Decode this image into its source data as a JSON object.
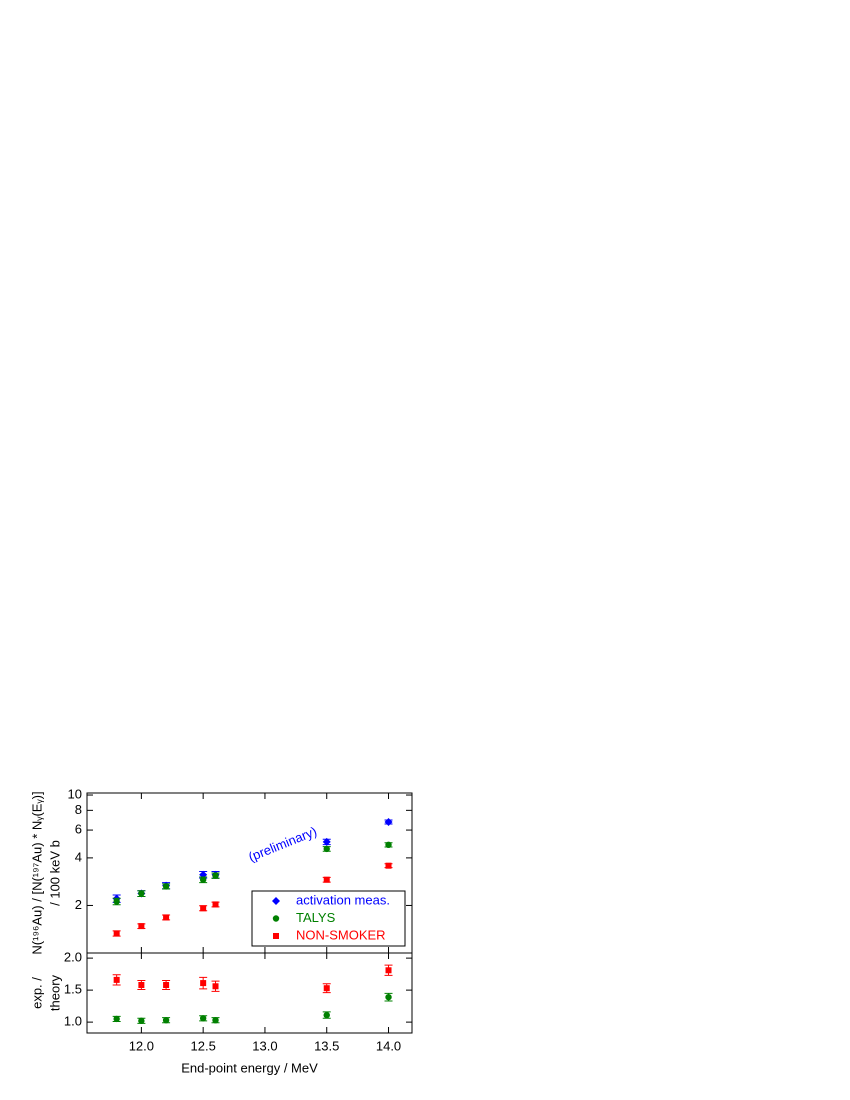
{
  "chart_data": [
    {
      "type": "scatter",
      "ylog": true,
      "y_label": [
        "N(¹⁹⁶Au) / [N(¹⁹⁷Au) * Nᵧ(Eᵧ)]",
        "/ 100 keV b"
      ],
      "annotation": "(preliminary)",
      "annotation_color": "#0000ff",
      "legend": "lower right",
      "x": [
        11.8,
        12.0,
        12.2,
        12.5,
        12.6,
        13.5,
        14.0
      ],
      "xlim": [
        11.56,
        14.19
      ],
      "ylim": [
        1.0,
        10.3
      ],
      "yticks": [
        2,
        4,
        6,
        8,
        10
      ],
      "series": [
        {
          "name": "activation meas.",
          "color": "#0000ff",
          "marker": "diamond",
          "values": [
            2.21,
            2.38,
            2.67,
            3.13,
            3.13,
            5.05,
            6.75
          ],
          "errors": [
            0.12,
            0.1,
            0.12,
            0.15,
            0.15,
            0.2,
            0.2
          ]
        },
        {
          "name": "TALYS",
          "color": "#008000",
          "marker": "circle",
          "values": [
            2.12,
            2.38,
            2.64,
            2.91,
            3.09,
            4.56,
            4.84
          ],
          "errors": [
            0.1,
            0.1,
            0.1,
            0.12,
            0.12,
            0.15,
            0.15
          ]
        },
        {
          "name": "NON-SMOKER",
          "color": "#ff0000",
          "marker": "square",
          "values": [
            1.33,
            1.48,
            1.68,
            1.92,
            2.03,
            2.91,
            3.57
          ],
          "errors": [
            0.05,
            0.05,
            0.06,
            0.07,
            0.07,
            0.1,
            0.1
          ]
        }
      ]
    },
    {
      "type": "scatter",
      "ylog": false,
      "y_label": [
        "exp. /",
        "theory"
      ],
      "x_label": "End-point energy  /  MeV",
      "x": [
        11.8,
        12.0,
        12.2,
        12.5,
        12.6,
        13.5,
        14.0
      ],
      "xlim": [
        11.56,
        14.19
      ],
      "ylim": [
        0.83,
        2.08
      ],
      "xticks": [
        {
          "value": 12.0,
          "label": "12.0"
        },
        {
          "value": 12.5,
          "label": "12.5"
        },
        {
          "value": 13.0,
          "label": "13.0"
        },
        {
          "value": 13.5,
          "label": "13.5"
        },
        {
          "value": 14.0,
          "label": "14.0"
        }
      ],
      "yticks": [
        {
          "value": 1.0,
          "label": "1.0"
        },
        {
          "value": 1.5,
          "label": "1.5"
        },
        {
          "value": 2.0,
          "label": "2.0"
        }
      ],
      "series": [
        {
          "color": "#008000",
          "marker": "circle",
          "values": [
            1.05,
            1.02,
            1.03,
            1.06,
            1.03,
            1.11,
            1.39
          ],
          "errors": [
            0.04,
            0.04,
            0.04,
            0.04,
            0.04,
            0.05,
            0.06
          ]
        },
        {
          "color": "#ff0000",
          "marker": "square",
          "values": [
            1.66,
            1.58,
            1.58,
            1.61,
            1.56,
            1.53,
            1.81
          ],
          "errors": [
            0.08,
            0.07,
            0.07,
            0.09,
            0.08,
            0.07,
            0.08
          ]
        }
      ]
    }
  ]
}
